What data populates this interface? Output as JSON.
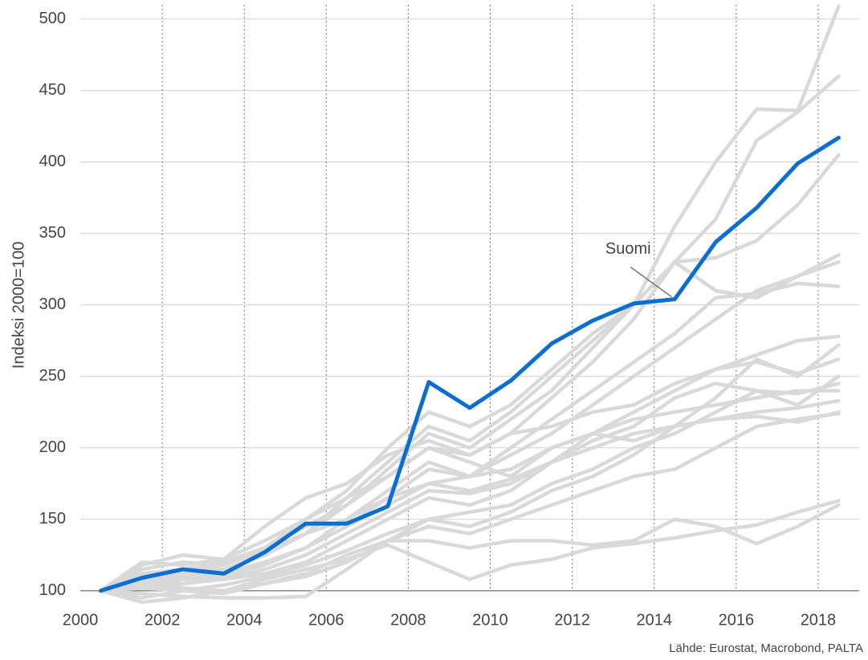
{
  "chart_data": {
    "type": "line",
    "y_label": "Indeksi 2000=100",
    "source": "Lähde: Eurostat, Macrobond, PALTA",
    "x": [
      2000.5,
      2001.5,
      2002.5,
      2003.5,
      2004.5,
      2005.5,
      2006.5,
      2007.5,
      2008.5,
      2009.5,
      2010.5,
      2011.5,
      2012.5,
      2013.5,
      2014.5,
      2015.5,
      2016.5,
      2017.5,
      2018.5
    ],
    "xlim": [
      2000,
      2019
    ],
    "xticks": [
      2000,
      2002,
      2004,
      2006,
      2008,
      2010,
      2012,
      2014,
      2016,
      2018
    ],
    "ylim": [
      92,
      510
    ],
    "yticks": [
      100,
      150,
      200,
      250,
      300,
      350,
      400,
      450,
      500
    ],
    "grid": true,
    "series": [
      {
        "color": "#d9d9d9",
        "values": [
          100,
          110,
          112,
          118,
          128,
          140,
          165,
          190,
          215,
          205,
          225,
          250,
          275,
          300,
          355,
          400,
          437,
          436,
          509
        ]
      },
      {
        "color": "#d9d9d9",
        "values": [
          100,
          112,
          115,
          120,
          130,
          145,
          160,
          185,
          210,
          200,
          220,
          240,
          270,
          300,
          330,
          360,
          415,
          435,
          460
        ]
      },
      {
        "color": "#d9d9d9",
        "values": [
          100,
          108,
          110,
          115,
          125,
          140,
          160,
          180,
          200,
          195,
          210,
          235,
          260,
          290,
          330,
          333,
          345,
          370,
          405
        ]
      },
      {
        "color": "#d9d9d9",
        "values": [
          100,
          105,
          110,
          112,
          120,
          130,
          150,
          170,
          190,
          180,
          195,
          210,
          230,
          250,
          270,
          290,
          310,
          320,
          335
        ]
      },
      {
        "color": "#d9d9d9",
        "values": [
          100,
          103,
          108,
          110,
          118,
          130,
          145,
          165,
          185,
          180,
          200,
          220,
          240,
          260,
          280,
          305,
          308,
          315,
          313
        ]
      },
      {
        "color": "#d9d9d9",
        "values": [
          100,
          102,
          105,
          108,
          112,
          120,
          135,
          150,
          165,
          160,
          170,
          190,
          210,
          225,
          240,
          255,
          265,
          275,
          278
        ]
      },
      {
        "color": "#d9d9d9",
        "values": [
          100,
          102,
          100,
          104,
          110,
          118,
          128,
          140,
          150,
          145,
          155,
          170,
          180,
          195,
          215,
          235,
          262,
          250,
          272
        ]
      },
      {
        "color": "#d9d9d9",
        "values": [
          100,
          115,
          120,
          118,
          130,
          150,
          170,
          200,
          225,
          215,
          230,
          255,
          280,
          300,
          330,
          310,
          305,
          320,
          330
        ]
      },
      {
        "color": "#d9d9d9",
        "values": [
          100,
          105,
          110,
          108,
          115,
          125,
          140,
          155,
          170,
          168,
          175,
          190,
          205,
          215,
          235,
          245,
          240,
          230,
          250
        ]
      },
      {
        "color": "#d9d9d9",
        "values": [
          100,
          98,
          96,
          95,
          95,
          96,
          115,
          135,
          150,
          155,
          160,
          175,
          185,
          200,
          210,
          225,
          240,
          238,
          245
        ]
      },
      {
        "color": "#d9d9d9",
        "values": [
          100,
          110,
          112,
          115,
          125,
          140,
          150,
          165,
          175,
          180,
          185,
          200,
          210,
          220,
          225,
          230,
          235,
          240,
          240
        ]
      },
      {
        "color": "#d9d9d9",
        "values": [
          100,
          108,
          105,
          110,
          120,
          130,
          145,
          160,
          175,
          170,
          178,
          190,
          200,
          210,
          215,
          220,
          225,
          228,
          233
        ]
      },
      {
        "color": "#d9d9d9",
        "values": [
          100,
          104,
          102,
          100,
          105,
          110,
          120,
          135,
          145,
          140,
          150,
          160,
          170,
          180,
          185,
          200,
          215,
          220,
          224
        ]
      },
      {
        "color": "#d9d9d9",
        "values": [
          100,
          95,
          100,
          98,
          105,
          112,
          125,
          135,
          135,
          130,
          135,
          135,
          132,
          135,
          150,
          145,
          133,
          145,
          160
        ]
      },
      {
        "color": "#d9d9d9",
        "values": [
          100,
          92,
          95,
          100,
          108,
          115,
          122,
          132,
          120,
          108,
          118,
          122,
          130,
          133,
          137,
          142,
          146,
          155,
          163
        ]
      },
      {
        "color": "#d9d9d9",
        "values": [
          100,
          120,
          118,
          122,
          145,
          165,
          175,
          195,
          205,
          195,
          210,
          215,
          225,
          230,
          245,
          255,
          260,
          252,
          262
        ]
      },
      {
        "color": "#d9d9d9",
        "values": [
          100,
          118,
          125,
          122,
          135,
          150,
          165,
          180,
          200,
          190,
          180,
          200,
          210,
          205,
          215,
          220,
          222,
          218,
          225
        ]
      },
      {
        "name": "Suomi",
        "color": "#0a6fd1",
        "values": [
          100,
          109,
          115,
          112,
          127,
          147,
          147,
          159,
          246,
          228,
          247,
          273,
          289,
          301,
          304,
          344,
          368,
          399,
          417
        ]
      }
    ]
  }
}
